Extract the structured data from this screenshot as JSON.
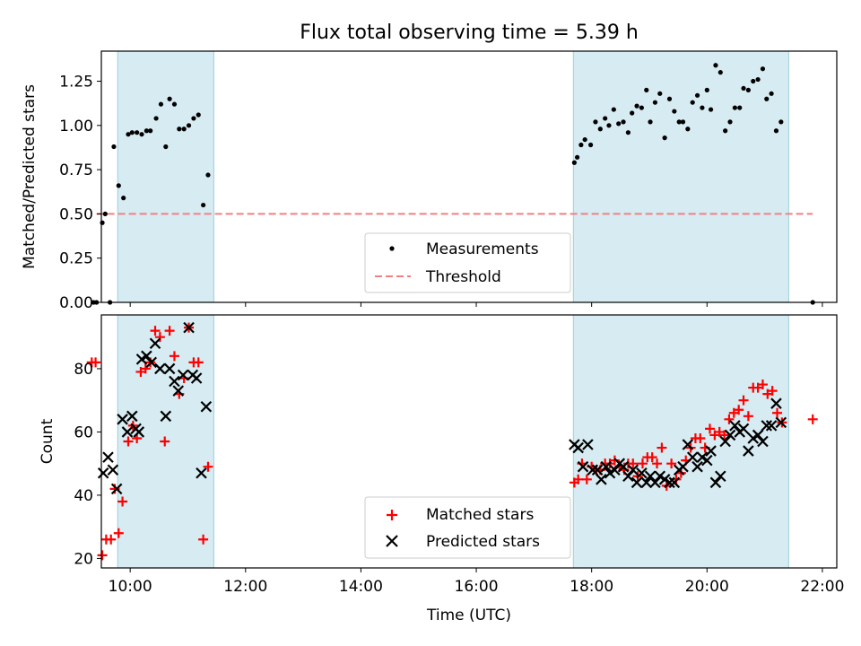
{
  "chart_data": [
    {
      "type": "scatter",
      "title": "Flux total observing time = 5.39 h",
      "xlabel": "",
      "ylabel": "Matched/Predicted stars",
      "xlim": [
        "09:30",
        "22:15"
      ],
      "ylim": [
        0,
        1.42
      ],
      "yticks": [
        0.0,
        0.25,
        0.5,
        0.75,
        1.0,
        1.25
      ],
      "ytick_labels": [
        "0.00",
        "0.25",
        "0.50",
        "0.75",
        "1.00",
        "1.25"
      ],
      "grid": false,
      "legend_position": "bottom-center",
      "shaded_intervals": [
        [
          "09:47",
          "11:27"
        ],
        [
          "17:41",
          "21:25"
        ]
      ],
      "threshold": {
        "label": "Threshold",
        "value": 0.5,
        "x_start": "09:25",
        "x_end": "21:50",
        "color": "#f08080"
      },
      "series": [
        {
          "name": "Measurements",
          "color": "#000000",
          "marker": "dot",
          "points": [
            [
              "09:22",
              0.0
            ],
            [
              "09:25",
              0.0
            ],
            [
              "09:31",
              0.45
            ],
            [
              "09:34",
              0.5
            ],
            [
              "09:39",
              0.0
            ],
            [
              "09:43",
              0.88
            ],
            [
              "09:48",
              0.66
            ],
            [
              "09:53",
              0.59
            ],
            [
              "09:58",
              0.95
            ],
            [
              "10:02",
              0.96
            ],
            [
              "10:07",
              0.96
            ],
            [
              "10:12",
              0.95
            ],
            [
              "10:17",
              0.97
            ],
            [
              "10:21",
              0.97
            ],
            [
              "10:27",
              1.04
            ],
            [
              "10:32",
              1.12
            ],
            [
              "10:37",
              0.88
            ],
            [
              "10:41",
              1.15
            ],
            [
              "10:46",
              1.12
            ],
            [
              "10:51",
              0.98
            ],
            [
              "10:56",
              0.98
            ],
            [
              "11:01",
              1.0
            ],
            [
              "11:06",
              1.04
            ],
            [
              "11:11",
              1.06
            ],
            [
              "11:16",
              0.55
            ],
            [
              "11:21",
              0.72
            ],
            [
              "17:42",
              0.79
            ],
            [
              "17:45",
              0.82
            ],
            [
              "17:49",
              0.89
            ],
            [
              "17:53",
              0.92
            ],
            [
              "17:59",
              0.89
            ],
            [
              "18:04",
              1.02
            ],
            [
              "18:09",
              0.98
            ],
            [
              "18:14",
              1.04
            ],
            [
              "18:18",
              1.0
            ],
            [
              "18:23",
              1.09
            ],
            [
              "18:28",
              1.01
            ],
            [
              "18:33",
              1.02
            ],
            [
              "18:38",
              0.96
            ],
            [
              "18:42",
              1.07
            ],
            [
              "18:47",
              1.11
            ],
            [
              "18:52",
              1.1
            ],
            [
              "18:57",
              1.2
            ],
            [
              "19:01",
              1.02
            ],
            [
              "19:06",
              1.13
            ],
            [
              "19:11",
              1.18
            ],
            [
              "19:16",
              0.93
            ],
            [
              "19:21",
              1.15
            ],
            [
              "19:26",
              1.08
            ],
            [
              "19:31",
              1.02
            ],
            [
              "19:35",
              1.02
            ],
            [
              "19:40",
              0.98
            ],
            [
              "19:45",
              1.13
            ],
            [
              "19:50",
              1.17
            ],
            [
              "19:55",
              1.1
            ],
            [
              "20:00",
              1.2
            ],
            [
              "20:04",
              1.09
            ],
            [
              "20:09",
              1.34
            ],
            [
              "20:14",
              1.3
            ],
            [
              "20:19",
              0.97
            ],
            [
              "20:24",
              1.02
            ],
            [
              "20:29",
              1.1
            ],
            [
              "20:34",
              1.1
            ],
            [
              "20:38",
              1.21
            ],
            [
              "20:43",
              1.2
            ],
            [
              "20:48",
              1.25
            ],
            [
              "20:53",
              1.26
            ],
            [
              "20:58",
              1.32
            ],
            [
              "21:02",
              1.15
            ],
            [
              "21:07",
              1.18
            ],
            [
              "21:12",
              0.97
            ],
            [
              "21:17",
              1.02
            ],
            [
              "21:50",
              0.0
            ]
          ]
        }
      ]
    },
    {
      "type": "scatter",
      "title": "",
      "xlabel": "Time (UTC)",
      "ylabel": "Count",
      "xlim": [
        "09:30",
        "22:15"
      ],
      "xticks": [
        "10:00",
        "12:00",
        "14:00",
        "16:00",
        "18:00",
        "20:00",
        "22:00"
      ],
      "ylim": [
        17,
        97
      ],
      "yticks": [
        20,
        40,
        60,
        80
      ],
      "grid": false,
      "legend_position": "bottom-center",
      "shaded_intervals": [
        [
          "09:47",
          "11:27"
        ],
        [
          "17:41",
          "21:25"
        ]
      ],
      "series": [
        {
          "name": "Matched stars",
          "color": "#ff0000",
          "marker": "plus",
          "points": [
            [
              "09:20",
              82
            ],
            [
              "09:24",
              82
            ],
            [
              "09:31",
              21
            ],
            [
              "09:35",
              26
            ],
            [
              "09:40",
              26
            ],
            [
              "09:44",
              42
            ],
            [
              "09:48",
              28
            ],
            [
              "09:52",
              38
            ],
            [
              "09:58",
              57
            ],
            [
              "10:03",
              62
            ],
            [
              "10:07",
              58
            ],
            [
              "10:11",
              79
            ],
            [
              "10:16",
              80
            ],
            [
              "10:21",
              82
            ],
            [
              "10:26",
              92
            ],
            [
              "10:31",
              90
            ],
            [
              "10:36",
              57
            ],
            [
              "10:41",
              92
            ],
            [
              "10:46",
              84
            ],
            [
              "10:51",
              72
            ],
            [
              "10:56",
              77
            ],
            [
              "11:01",
              93
            ],
            [
              "11:06",
              82
            ],
            [
              "11:11",
              82
            ],
            [
              "11:16",
              26
            ],
            [
              "11:21",
              49
            ],
            [
              "17:42",
              44
            ],
            [
              "17:46",
              45
            ],
            [
              "17:50",
              50
            ],
            [
              "17:55",
              45
            ],
            [
              "18:00",
              49
            ],
            [
              "18:05",
              48
            ],
            [
              "18:09",
              48
            ],
            [
              "18:14",
              50
            ],
            [
              "18:19",
              50
            ],
            [
              "18:24",
              51
            ],
            [
              "18:29",
              49
            ],
            [
              "18:34",
              48
            ],
            [
              "18:38",
              50
            ],
            [
              "18:43",
              50
            ],
            [
              "18:48",
              46
            ],
            [
              "18:53",
              50
            ],
            [
              "18:58",
              52
            ],
            [
              "19:03",
              52
            ],
            [
              "19:08",
              50
            ],
            [
              "19:13",
              55
            ],
            [
              "19:18",
              43
            ],
            [
              "19:23",
              50
            ],
            [
              "19:28",
              45
            ],
            [
              "19:33",
              47
            ],
            [
              "19:38",
              51
            ],
            [
              "19:43",
              55
            ],
            [
              "19:48",
              58
            ],
            [
              "19:53",
              58
            ],
            [
              "19:58",
              55
            ],
            [
              "20:03",
              61
            ],
            [
              "20:08",
              59
            ],
            [
              "20:13",
              60
            ],
            [
              "20:18",
              59
            ],
            [
              "20:23",
              64
            ],
            [
              "20:28",
              66
            ],
            [
              "20:33",
              67
            ],
            [
              "20:38",
              70
            ],
            [
              "20:43",
              65
            ],
            [
              "20:48",
              74
            ],
            [
              "20:53",
              74
            ],
            [
              "20:58",
              75
            ],
            [
              "21:03",
              72
            ],
            [
              "21:08",
              73
            ],
            [
              "21:13",
              66
            ],
            [
              "21:18",
              63
            ],
            [
              "21:50",
              64
            ]
          ]
        },
        {
          "name": "Predicted stars",
          "color": "#000000",
          "marker": "x",
          "points": [
            [
              "09:32",
              47
            ],
            [
              "09:37",
              52
            ],
            [
              "09:42",
              48
            ],
            [
              "09:46",
              42
            ],
            [
              "09:52",
              64
            ],
            [
              "09:57",
              60
            ],
            [
              "10:02",
              65
            ],
            [
              "10:06",
              61
            ],
            [
              "10:09",
              60
            ],
            [
              "10:12",
              83
            ],
            [
              "10:17",
              84
            ],
            [
              "10:22",
              82
            ],
            [
              "10:26",
              88
            ],
            [
              "10:31",
              80
            ],
            [
              "10:37",
              65
            ],
            [
              "10:41",
              80
            ],
            [
              "10:46",
              76
            ],
            [
              "10:50",
              73
            ],
            [
              "10:55",
              78
            ],
            [
              "11:01",
              93
            ],
            [
              "11:05",
              78
            ],
            [
              "11:09",
              77
            ],
            [
              "11:14",
              47
            ],
            [
              "11:19",
              68
            ],
            [
              "17:42",
              56
            ],
            [
              "17:46",
              55
            ],
            [
              "17:51",
              49
            ],
            [
              "17:56",
              56
            ],
            [
              "18:01",
              48
            ],
            [
              "18:06",
              48
            ],
            [
              "18:10",
              45
            ],
            [
              "18:15",
              49
            ],
            [
              "18:19",
              47
            ],
            [
              "18:24",
              48
            ],
            [
              "18:29",
              50
            ],
            [
              "18:33",
              49
            ],
            [
              "18:38",
              46
            ],
            [
              "18:43",
              48
            ],
            [
              "18:47",
              44
            ],
            [
              "18:52",
              47
            ],
            [
              "18:57",
              44
            ],
            [
              "19:01",
              46
            ],
            [
              "19:06",
              44
            ],
            [
              "19:11",
              46
            ],
            [
              "19:16",
              45
            ],
            [
              "19:21",
              44
            ],
            [
              "19:26",
              44
            ],
            [
              "19:31",
              48
            ],
            [
              "19:35",
              49
            ],
            [
              "19:40",
              56
            ],
            [
              "19:45",
              52
            ],
            [
              "19:50",
              49
            ],
            [
              "19:55",
              52
            ],
            [
              "20:00",
              51
            ],
            [
              "20:04",
              54
            ],
            [
              "20:09",
              44
            ],
            [
              "20:14",
              46
            ],
            [
              "20:19",
              57
            ],
            [
              "20:24",
              59
            ],
            [
              "20:29",
              62
            ],
            [
              "20:34",
              60
            ],
            [
              "20:38",
              61
            ],
            [
              "20:43",
              54
            ],
            [
              "20:48",
              58
            ],
            [
              "20:53",
              59
            ],
            [
              "20:58",
              57
            ],
            [
              "21:02",
              62
            ],
            [
              "21:07",
              62
            ],
            [
              "21:12",
              69
            ],
            [
              "21:17",
              63
            ]
          ]
        }
      ]
    }
  ]
}
